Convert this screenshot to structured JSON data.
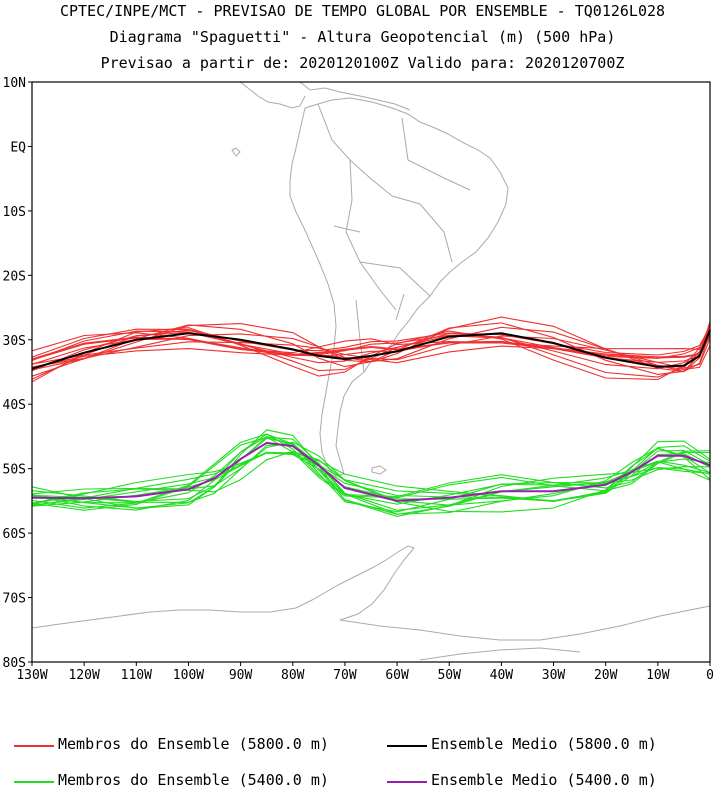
{
  "header": {
    "title_line1": "CPTEC/INPE/MCT - PREVISAO DE TEMPO GLOBAL POR ENSEMBLE - TQ0126L028",
    "title_line2": "Diagrama \"Spaguetti\" - Altura Geopotencial (m) (500 hPa)",
    "title_line3": "Previsao a partir de: 2020120100Z  Valido para: 2020120700Z"
  },
  "axes": {
    "y_labels": [
      "10N",
      "EQ",
      "10S",
      "20S",
      "30S",
      "40S",
      "50S",
      "60S",
      "70S",
      "80S"
    ],
    "x_labels": [
      "130W",
      "120W",
      "110W",
      "100W",
      "90W",
      "80W",
      "70W",
      "60W",
      "50W",
      "40W",
      "30W",
      "20W",
      "10W",
      "0"
    ]
  },
  "legend": [
    {
      "label": "Membros do Ensemble (5800.0 m)",
      "color": "#ee3030"
    },
    {
      "label": "Ensemble Medio (5800.0 m)",
      "color": "#000000"
    },
    {
      "label": "Membros do Ensemble (5400.0 m)",
      "color": "#22dd22"
    },
    {
      "label": "Ensemble Medio (5400.0 m)",
      "color": "#9a1fb0"
    }
  ],
  "chart_data": {
    "type": "line",
    "xlim": [
      -130,
      0
    ],
    "ylim": [
      -80,
      10
    ],
    "series": [
      {
        "name": "Ensemble Medio (5800.0 m)",
        "color": "#000000",
        "lon": [
          -130,
          -120,
          -110,
          -100,
          -90,
          -80,
          -75,
          -70,
          -65,
          -60,
          -50,
          -40,
          -30,
          -20,
          -10,
          -5,
          -2,
          0
        ],
        "lat": [
          -34.5,
          -32.0,
          -30.0,
          -29.0,
          -30.0,
          -31.5,
          -32.5,
          -33.0,
          -32.5,
          -31.8,
          -29.5,
          -29.0,
          -30.5,
          -32.8,
          -34.2,
          -34.0,
          -32.5,
          -28.5
        ]
      },
      {
        "name": "Ensemble Medio (5400.0 m)",
        "color": "#9a1fb0",
        "lon": [
          -130,
          -120,
          -110,
          -100,
          -95,
          -90,
          -85,
          -80,
          -75,
          -70,
          -60,
          -50,
          -40,
          -30,
          -20,
          -15,
          -10,
          -5,
          0
        ],
        "lat": [
          -54.5,
          -54.6,
          -54.3,
          -53.2,
          -51.5,
          -48.5,
          -46.0,
          -46.5,
          -49.5,
          -53.0,
          -55.0,
          -54.5,
          -53.5,
          -53.5,
          -52.5,
          -50.5,
          -48.0,
          -48.0,
          -49.5
        ]
      }
    ],
    "member_groups": [
      {
        "name": "Membros do Ensemble (5800.0 m)",
        "color": "#ee3030",
        "count": 14
      },
      {
        "name": "Membros do Ensemble (5400.0 m)",
        "color": "#22dd22",
        "count": 14
      }
    ]
  }
}
